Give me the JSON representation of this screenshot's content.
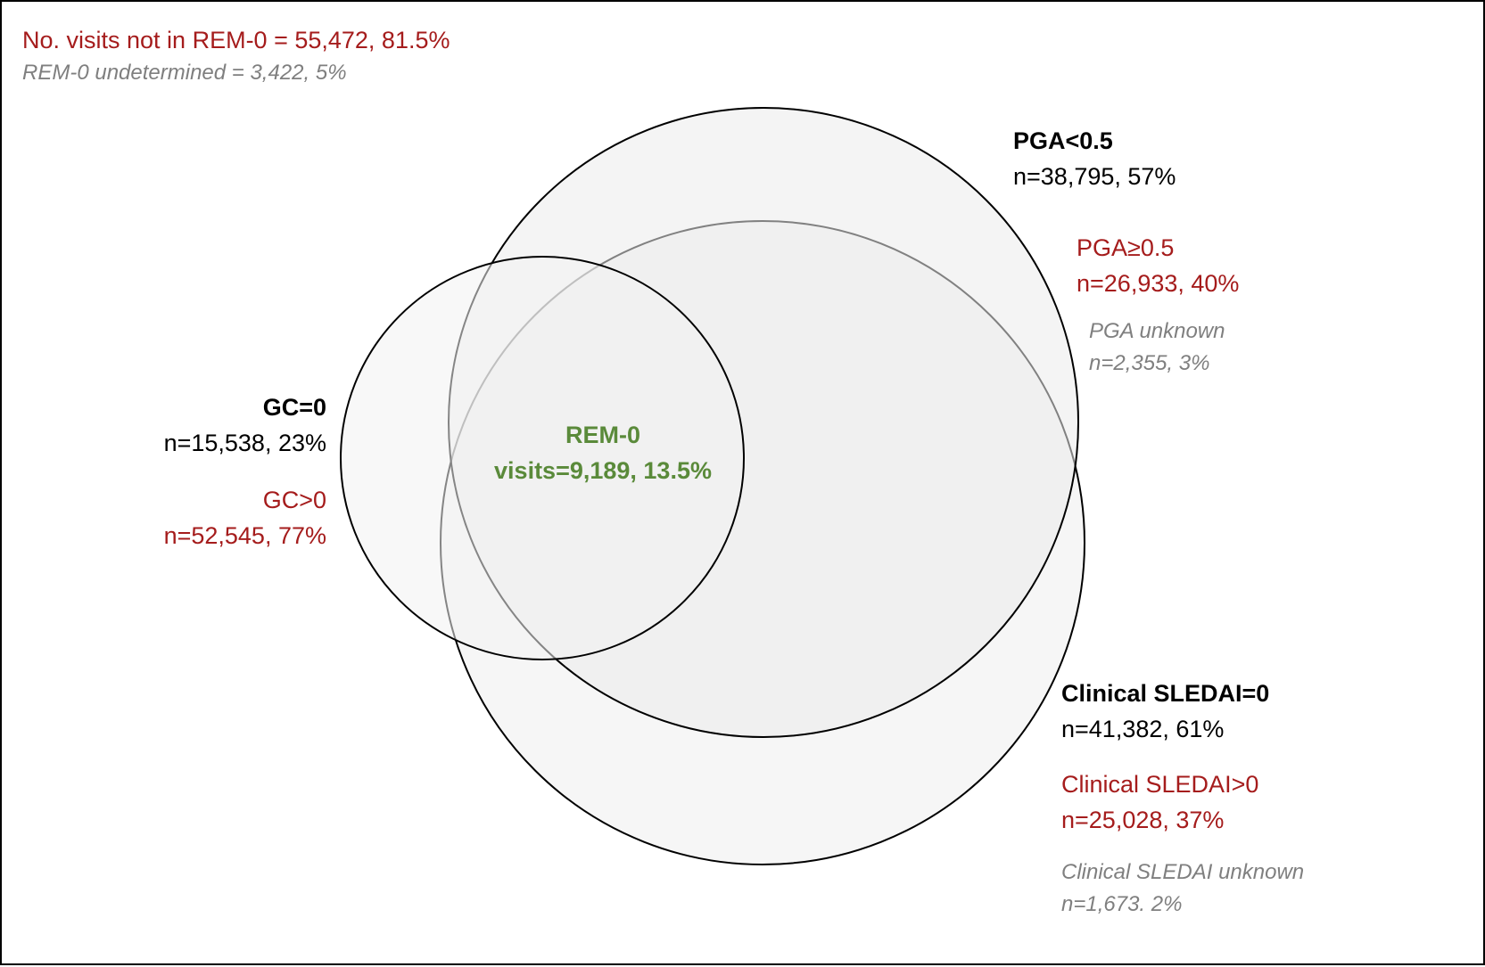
{
  "colors": {
    "black": "#000000",
    "red": "#a51c1c",
    "grey": "#7f7f7f",
    "green": "#5a8a3a",
    "circle_fill": "#f0f0f0"
  },
  "header": {
    "not_rem0": "No. visits not in REM-0 = 55,472, 81.5%",
    "undetermined": "REM-0 undetermined = 3,422, 5%"
  },
  "gc": {
    "pos_title": "GC=0",
    "pos_count": "n=15,538, 23%",
    "neg_title": "GC>0",
    "neg_count": "n=52,545, 77%"
  },
  "pga": {
    "pos_title": "PGA<0.5",
    "pos_count": "n=38,795, 57%",
    "neg_title": "PGA≥0.5",
    "neg_count": "n=26,933, 40%",
    "unknown_title": "PGA unknown",
    "unknown_count": "n=2,355, 3%"
  },
  "sledai": {
    "pos_title": "Clinical SLEDAI=0",
    "pos_count": "n=41,382, 61%",
    "neg_title": "Clinical SLEDAI>0",
    "neg_count": "n=25,028, 37%",
    "unknown_title": "Clinical SLEDAI unknown",
    "unknown_count": "n=1,673. 2%"
  },
  "rem0": {
    "title": "REM-0",
    "count": "visits=9,189, 13.5%"
  }
}
